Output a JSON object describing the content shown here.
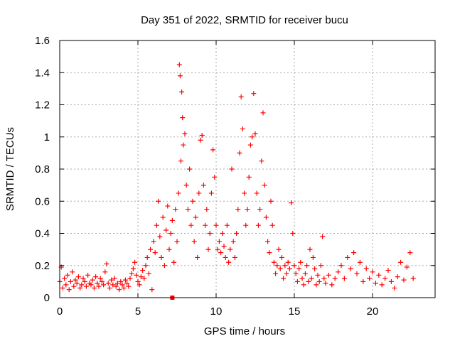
{
  "chart_data": {
    "type": "scatter",
    "title": "Day 351 of 2022, SRMTID for receiver bucu",
    "xlabel": "GPS time / hours",
    "ylabel": "SRMTID / TECUs",
    "xlim": [
      0,
      24
    ],
    "ylim": [
      0,
      1.6
    ],
    "xticks": [
      0,
      5,
      10,
      15,
      20
    ],
    "xtick_labels": [
      "0",
      "5",
      "10",
      "15",
      "20"
    ],
    "yticks": [
      0,
      0.2,
      0.4,
      0.6,
      0.8,
      1.0,
      1.2,
      1.4,
      1.6
    ],
    "ytick_labels": [
      "0",
      "0.2",
      "0.4",
      "0.6",
      "0.8",
      "1",
      "1.2",
      "1.4",
      "1.6"
    ],
    "grid": true,
    "marker": "+",
    "color": "#ff0000",
    "series": [
      {
        "name": "SRMTID",
        "points": [
          [
            0.0,
            0.1
          ],
          [
            0.1,
            0.19
          ],
          [
            0.2,
            0.06
          ],
          [
            0.3,
            0.12
          ],
          [
            0.4,
            0.08
          ],
          [
            0.5,
            0.14
          ],
          [
            0.6,
            0.05
          ],
          [
            0.7,
            0.1
          ],
          [
            0.8,
            0.16
          ],
          [
            0.9,
            0.07
          ],
          [
            1.0,
            0.11
          ],
          [
            1.1,
            0.09
          ],
          [
            1.2,
            0.13
          ],
          [
            1.3,
            0.06
          ],
          [
            1.4,
            0.08
          ],
          [
            1.5,
            0.12
          ],
          [
            1.6,
            0.1
          ],
          [
            1.7,
            0.07
          ],
          [
            1.8,
            0.14
          ],
          [
            1.9,
            0.09
          ],
          [
            2.0,
            0.08
          ],
          [
            2.1,
            0.11
          ],
          [
            2.2,
            0.06
          ],
          [
            2.3,
            0.13
          ],
          [
            2.4,
            0.09
          ],
          [
            2.5,
            0.07
          ],
          [
            2.6,
            0.12
          ],
          [
            2.7,
            0.1
          ],
          [
            2.8,
            0.08
          ],
          [
            2.9,
            0.16
          ],
          [
            3.0,
            0.21
          ],
          [
            3.1,
            0.09
          ],
          [
            3.2,
            0.06
          ],
          [
            3.3,
            0.11
          ],
          [
            3.4,
            0.08
          ],
          [
            3.5,
            0.12
          ],
          [
            3.6,
            0.07
          ],
          [
            3.7,
            0.09
          ],
          [
            3.8,
            0.05
          ],
          [
            3.9,
            0.1
          ],
          [
            4.0,
            0.08
          ],
          [
            4.1,
            0.06
          ],
          [
            4.2,
            0.11
          ],
          [
            4.3,
            0.09
          ],
          [
            4.4,
            0.07
          ],
          [
            4.5,
            0.12
          ],
          [
            4.6,
            0.15
          ],
          [
            4.7,
            0.18
          ],
          [
            4.8,
            0.22
          ],
          [
            4.9,
            0.14
          ],
          [
            5.0,
            0.1
          ],
          [
            5.1,
            0.08
          ],
          [
            5.2,
            0.13
          ],
          [
            5.3,
            0.17
          ],
          [
            5.4,
            0.12
          ],
          [
            5.5,
            0.2
          ],
          [
            5.6,
            0.25
          ],
          [
            5.7,
            0.15
          ],
          [
            5.8,
            0.3
          ],
          [
            5.9,
            0.05
          ],
          [
            6.0,
            0.35
          ],
          [
            6.1,
            0.28
          ],
          [
            6.2,
            0.45
          ],
          [
            6.3,
            0.6
          ],
          [
            6.4,
            0.38
          ],
          [
            6.5,
            0.25
          ],
          [
            6.6,
            0.5
          ],
          [
            6.7,
            0.2
          ],
          [
            6.8,
            0.42
          ],
          [
            6.9,
            0.57
          ],
          [
            7.0,
            0.3
          ],
          [
            7.1,
            0.4
          ],
          [
            7.2,
            0.48
          ],
          [
            7.3,
            0.22
          ],
          [
            7.4,
            0.55
          ],
          [
            7.5,
            0.35
          ],
          [
            7.6,
            0.65
          ],
          [
            7.65,
            1.45
          ],
          [
            7.7,
            1.38
          ],
          [
            7.75,
            0.85
          ],
          [
            7.8,
            1.28
          ],
          [
            7.85,
            1.12
          ],
          [
            7.9,
            0.95
          ],
          [
            8.0,
            1.02
          ],
          [
            8.1,
            0.7
          ],
          [
            8.2,
            0.55
          ],
          [
            8.3,
            0.8
          ],
          [
            8.4,
            0.45
          ],
          [
            8.5,
            0.6
          ],
          [
            8.6,
            0.35
          ],
          [
            8.7,
            0.5
          ],
          [
            8.8,
            0.25
          ],
          [
            8.9,
            0.65
          ],
          [
            9.0,
            0.98
          ],
          [
            9.1,
            1.01
          ],
          [
            9.2,
            0.7
          ],
          [
            9.3,
            0.45
          ],
          [
            9.4,
            0.55
          ],
          [
            9.5,
            0.3
          ],
          [
            9.6,
            0.4
          ],
          [
            9.7,
            0.65
          ],
          [
            9.8,
            0.92
          ],
          [
            9.9,
            0.75
          ],
          [
            10.0,
            0.45
          ],
          [
            10.1,
            0.3
          ],
          [
            10.2,
            0.35
          ],
          [
            10.3,
            0.28
          ],
          [
            10.4,
            0.4
          ],
          [
            10.5,
            0.32
          ],
          [
            10.6,
            0.25
          ],
          [
            10.7,
            0.45
          ],
          [
            10.8,
            0.22
          ],
          [
            10.9,
            0.3
          ],
          [
            11.0,
            0.8
          ],
          [
            11.1,
            0.35
          ],
          [
            11.2,
            0.25
          ],
          [
            11.3,
            0.4
          ],
          [
            11.4,
            0.55
          ],
          [
            11.5,
            0.9
          ],
          [
            11.6,
            1.25
          ],
          [
            11.7,
            1.05
          ],
          [
            11.8,
            0.65
          ],
          [
            11.9,
            0.45
          ],
          [
            12.0,
            0.55
          ],
          [
            12.1,
            0.75
          ],
          [
            12.2,
            0.95
          ],
          [
            12.3,
            1.0
          ],
          [
            12.4,
            1.27
          ],
          [
            12.5,
            1.02
          ],
          [
            12.6,
            0.65
          ],
          [
            12.7,
            0.45
          ],
          [
            12.8,
            0.55
          ],
          [
            12.9,
            0.85
          ],
          [
            13.0,
            1.15
          ],
          [
            13.1,
            0.7
          ],
          [
            13.2,
            0.5
          ],
          [
            13.3,
            0.35
          ],
          [
            13.4,
            0.28
          ],
          [
            13.5,
            0.6
          ],
          [
            13.6,
            0.45
          ],
          [
            13.7,
            0.22
          ],
          [
            13.8,
            0.15
          ],
          [
            13.9,
            0.2
          ],
          [
            14.0,
            0.3
          ],
          [
            14.1,
            0.18
          ],
          [
            14.2,
            0.25
          ],
          [
            14.3,
            0.12
          ],
          [
            14.4,
            0.2
          ],
          [
            14.5,
            0.15
          ],
          [
            14.6,
            0.22
          ],
          [
            14.7,
            0.18
          ],
          [
            14.8,
            0.59
          ],
          [
            14.9,
            0.4
          ],
          [
            15.0,
            0.2
          ],
          [
            15.1,
            0.15
          ],
          [
            15.2,
            0.1
          ],
          [
            15.3,
            0.18
          ],
          [
            15.4,
            0.22
          ],
          [
            15.5,
            0.12
          ],
          [
            15.6,
            0.08
          ],
          [
            15.7,
            0.15
          ],
          [
            15.8,
            0.2
          ],
          [
            15.9,
            0.1
          ],
          [
            16.0,
            0.3
          ],
          [
            16.1,
            0.12
          ],
          [
            16.2,
            0.25
          ],
          [
            16.3,
            0.18
          ],
          [
            16.4,
            0.08
          ],
          [
            16.5,
            0.14
          ],
          [
            16.6,
            0.1
          ],
          [
            16.7,
            0.2
          ],
          [
            16.8,
            0.38
          ],
          [
            16.9,
            0.12
          ],
          [
            17.0,
            0.09
          ],
          [
            17.2,
            0.14
          ],
          [
            17.4,
            0.08
          ],
          [
            17.6,
            0.12
          ],
          [
            17.8,
            0.16
          ],
          [
            18.0,
            0.2
          ],
          [
            18.2,
            0.12
          ],
          [
            18.4,
            0.25
          ],
          [
            18.6,
            0.18
          ],
          [
            18.8,
            0.28
          ],
          [
            19.0,
            0.15
          ],
          [
            19.2,
            0.22
          ],
          [
            19.4,
            0.1
          ],
          [
            19.6,
            0.18
          ],
          [
            19.8,
            0.12
          ],
          [
            20.0,
            0.16
          ],
          [
            20.2,
            0.09
          ],
          [
            20.4,
            0.14
          ],
          [
            20.6,
            0.08
          ],
          [
            20.8,
            0.12
          ],
          [
            21.0,
            0.17
          ],
          [
            21.2,
            0.1
          ],
          [
            21.4,
            0.06
          ],
          [
            21.6,
            0.13
          ],
          [
            21.8,
            0.22
          ],
          [
            22.0,
            0.11
          ],
          [
            22.2,
            0.19
          ],
          [
            22.4,
            0.28
          ],
          [
            22.6,
            0.12
          ]
        ]
      }
    ],
    "extra_marks": [
      {
        "shape": "square",
        "x": 7.2,
        "y": 0.0
      }
    ]
  }
}
